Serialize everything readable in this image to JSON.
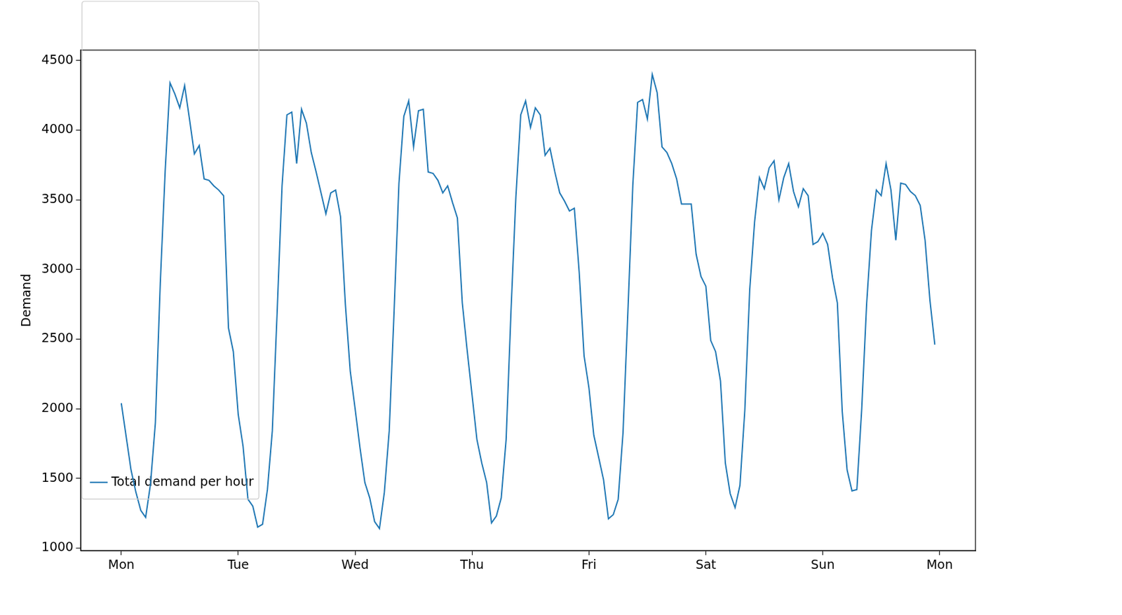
{
  "chart_data": {
    "type": "line",
    "y_label": "Demand",
    "x": [
      0,
      1,
      2,
      3,
      4,
      5,
      6,
      7,
      8,
      9,
      10,
      11,
      12,
      13,
      14,
      15,
      16,
      17,
      18,
      19,
      20,
      21,
      22,
      23,
      24,
      25,
      26,
      27,
      28,
      29,
      30,
      31,
      32,
      33,
      34,
      35,
      36,
      37,
      38,
      39,
      40,
      41,
      42,
      43,
      44,
      45,
      46,
      47,
      48,
      49,
      50,
      51,
      52,
      53,
      54,
      55,
      56,
      57,
      58,
      59,
      60,
      61,
      62,
      63,
      64,
      65,
      66,
      67,
      68,
      69,
      70,
      71,
      72,
      73,
      74,
      75,
      76,
      77,
      78,
      79,
      80,
      81,
      82,
      83,
      84,
      85,
      86,
      87,
      88,
      89,
      90,
      91,
      92,
      93,
      94,
      95,
      96,
      97,
      98,
      99,
      100,
      101,
      102,
      103,
      104,
      105,
      106,
      107,
      108,
      109,
      110,
      111,
      112,
      113,
      114,
      115,
      116,
      117,
      118,
      119,
      120,
      121,
      122,
      123,
      124,
      125,
      126,
      127,
      128,
      129,
      130,
      131,
      132,
      133,
      134,
      135,
      136,
      137,
      138,
      139,
      140,
      141,
      142,
      143,
      144,
      145,
      146,
      147,
      148,
      149,
      150,
      151,
      152,
      153,
      154,
      155,
      156,
      157,
      158,
      159,
      160,
      161,
      162,
      163,
      164,
      165,
      166,
      167
    ],
    "series": [
      {
        "name": "Total demand per hour",
        "color": "#1f77b4",
        "values": [
          2040,
          1800,
          1560,
          1400,
          1270,
          1220,
          1460,
          1900,
          2900,
          3700,
          4340,
          4260,
          4160,
          4320,
          4080,
          3830,
          3890,
          3650,
          3640,
          3600,
          3570,
          3530,
          2580,
          2410,
          1960,
          1730,
          1350,
          1300,
          1150,
          1170,
          1420,
          1840,
          2700,
          3600,
          4110,
          4130,
          3760,
          4150,
          4050,
          3840,
          3700,
          3550,
          3400,
          3550,
          3570,
          3380,
          2750,
          2270,
          2000,
          1720,
          1470,
          1360,
          1190,
          1140,
          1400,
          1840,
          2700,
          3620,
          4100,
          4210,
          3880,
          4140,
          4150,
          3700,
          3690,
          3640,
          3550,
          3600,
          3480,
          3370,
          2760,
          2420,
          2100,
          1780,
          1610,
          1470,
          1180,
          1230,
          1360,
          1780,
          2700,
          3520,
          4110,
          4210,
          4020,
          4160,
          4110,
          3820,
          3870,
          3700,
          3550,
          3490,
          3420,
          3440,
          2980,
          2380,
          2150,
          1810,
          1650,
          1490,
          1210,
          1240,
          1350,
          1830,
          2700,
          3600,
          4200,
          4220,
          4080,
          4400,
          4270,
          3880,
          3840,
          3760,
          3650,
          3470,
          3470,
          3470,
          3110,
          2950,
          2880,
          2490,
          2410,
          2200,
          1610,
          1390,
          1290,
          1450,
          1990,
          2850,
          3340,
          3660,
          3580,
          3730,
          3780,
          3500,
          3660,
          3760,
          3560,
          3450,
          3580,
          3530,
          3180,
          3200,
          3260,
          3180,
          2940,
          2760,
          1980,
          1560,
          1410,
          1420,
          2000,
          2750,
          3280,
          3570,
          3530,
          3760,
          3570,
          3210,
          3620,
          3610,
          3560,
          3530,
          3460,
          3210,
          2780,
          2460
        ]
      }
    ],
    "xlim": [
      -8.35,
      175.35
    ],
    "xticks": [
      {
        "value": 0,
        "label": "Mon"
      },
      {
        "value": 24,
        "label": "Tue"
      },
      {
        "value": 48,
        "label": "Wed"
      },
      {
        "value": 72,
        "label": "Thu"
      },
      {
        "value": 96,
        "label": "Fri"
      },
      {
        "value": 120,
        "label": "Sat"
      },
      {
        "value": 144,
        "label": "Sun"
      },
      {
        "value": 168,
        "label": "Mon"
      }
    ],
    "ylim": [
      982,
      4575
    ],
    "yticks": [
      1000,
      1500,
      2000,
      2500,
      3000,
      3500,
      4000,
      4500
    ],
    "grid": false,
    "legend": "upper right"
  }
}
